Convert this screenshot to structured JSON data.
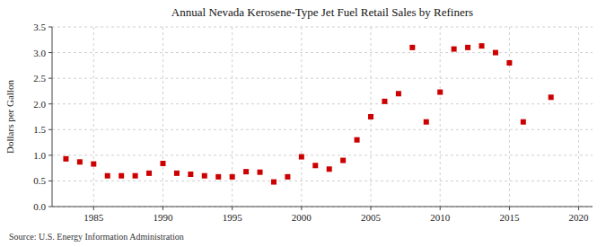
{
  "chart_data": {
    "type": "scatter",
    "title": "Annual Nevada Kerosene-Type Jet Fuel Retail Sales by Refiners",
    "y_label": "Dollars per Gallon",
    "source": "Source: U.S. Energy Information Administration",
    "color": "#cc0000",
    "marker": "square",
    "grid": true,
    "xlim": [
      1982,
      2021
    ],
    "ylim": [
      0.0,
      3.5
    ],
    "xticks": [
      1985,
      1990,
      1995,
      2000,
      2005,
      2010,
      2015,
      2020
    ],
    "yticks": [
      {
        "value": 0.0,
        "label": "0.0"
      },
      0.5,
      {
        "value": 1.0,
        "label": "1.0"
      },
      1.5,
      {
        "value": 2.0,
        "label": "2.0"
      },
      2.5,
      {
        "value": 3.0,
        "label": "3.0"
      },
      3.5
    ],
    "x": [
      1983,
      1984,
      1985,
      1986,
      1987,
      1988,
      1989,
      1990,
      1991,
      1992,
      1993,
      1994,
      1995,
      1996,
      1997,
      1998,
      1999,
      2000,
      2001,
      2002,
      2003,
      2004,
      2005,
      2006,
      2007,
      2008,
      2009,
      2010,
      2011,
      2012,
      2013,
      2014,
      2015,
      2016,
      2018
    ],
    "values": [
      0.93,
      0.87,
      0.83,
      0.6,
      0.6,
      0.6,
      0.65,
      0.84,
      0.65,
      0.63,
      0.6,
      0.58,
      0.58,
      0.68,
      0.67,
      0.48,
      0.58,
      0.97,
      0.8,
      0.73,
      0.9,
      1.3,
      1.75,
      2.05,
      2.2,
      3.1,
      1.65,
      2.23,
      3.07,
      3.1,
      3.13,
      3.0,
      2.8,
      1.65,
      2.13
    ]
  }
}
